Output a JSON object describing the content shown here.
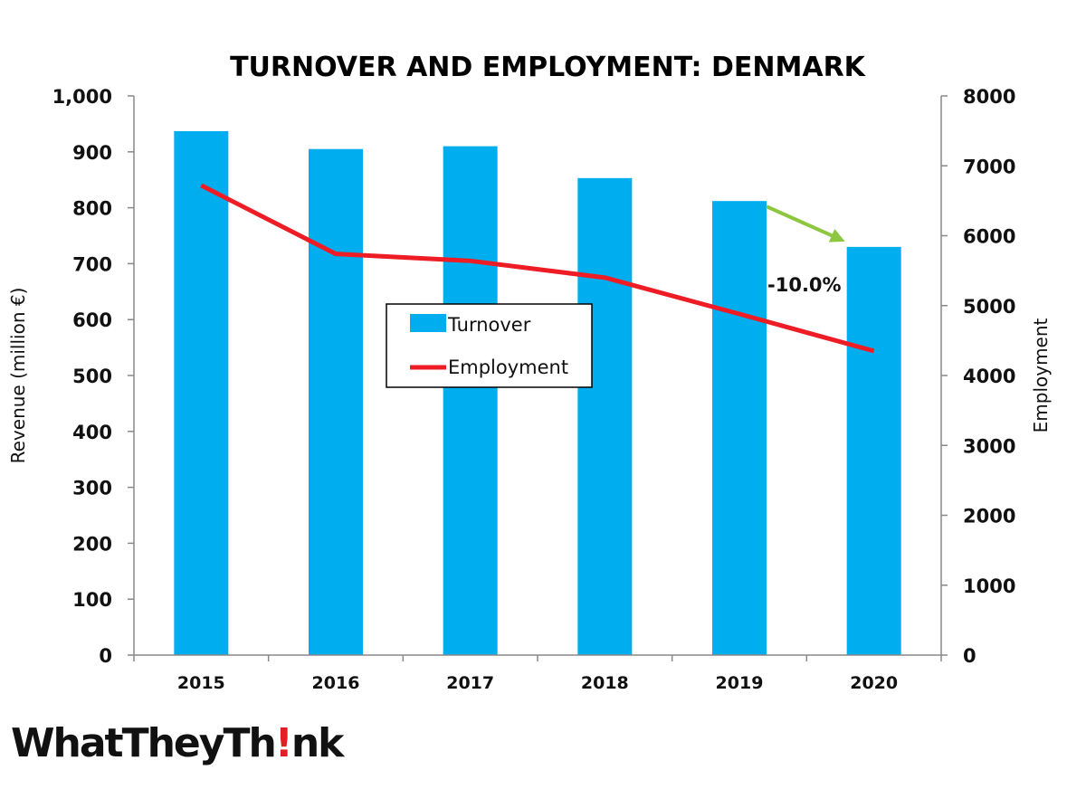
{
  "chart_data": {
    "type": "bar",
    "title": "TURNOVER AND EMPLOYMENT: DENMARK",
    "categories": [
      "2015",
      "2016",
      "2017",
      "2018",
      "2019",
      "2020"
    ],
    "series": [
      {
        "name": "Turnover",
        "type": "bar",
        "axis": "left",
        "color": "#00aeef",
        "values": [
          937,
          905,
          910,
          853,
          812,
          730
        ]
      },
      {
        "name": "Employment",
        "type": "line",
        "axis": "right",
        "color": "#ee1c25",
        "values": [
          6720,
          5740,
          5640,
          5400,
          4880,
          4350
        ]
      }
    ],
    "ylabel": "Revenue (million €)",
    "ylim": [
      0,
      1000
    ],
    "yticks": [
      "0",
      "100",
      "200",
      "300",
      "400",
      "500",
      "600",
      "700",
      "800",
      "900",
      "1,000"
    ],
    "y2label": "Employment",
    "y2lim": [
      0,
      8000
    ],
    "y2ticks": [
      "0",
      "1000",
      "2000",
      "3000",
      "4000",
      "5000",
      "6000",
      "7000",
      "8000"
    ],
    "annotation": {
      "text": "-10.0%",
      "from": "2019",
      "to": "2020",
      "arrow_color": "#8dc63f"
    },
    "legend": "center",
    "grid": false
  },
  "logo": {
    "text_before": "WhatTheyTh",
    "text_bang": "!",
    "text_after": "nk"
  }
}
